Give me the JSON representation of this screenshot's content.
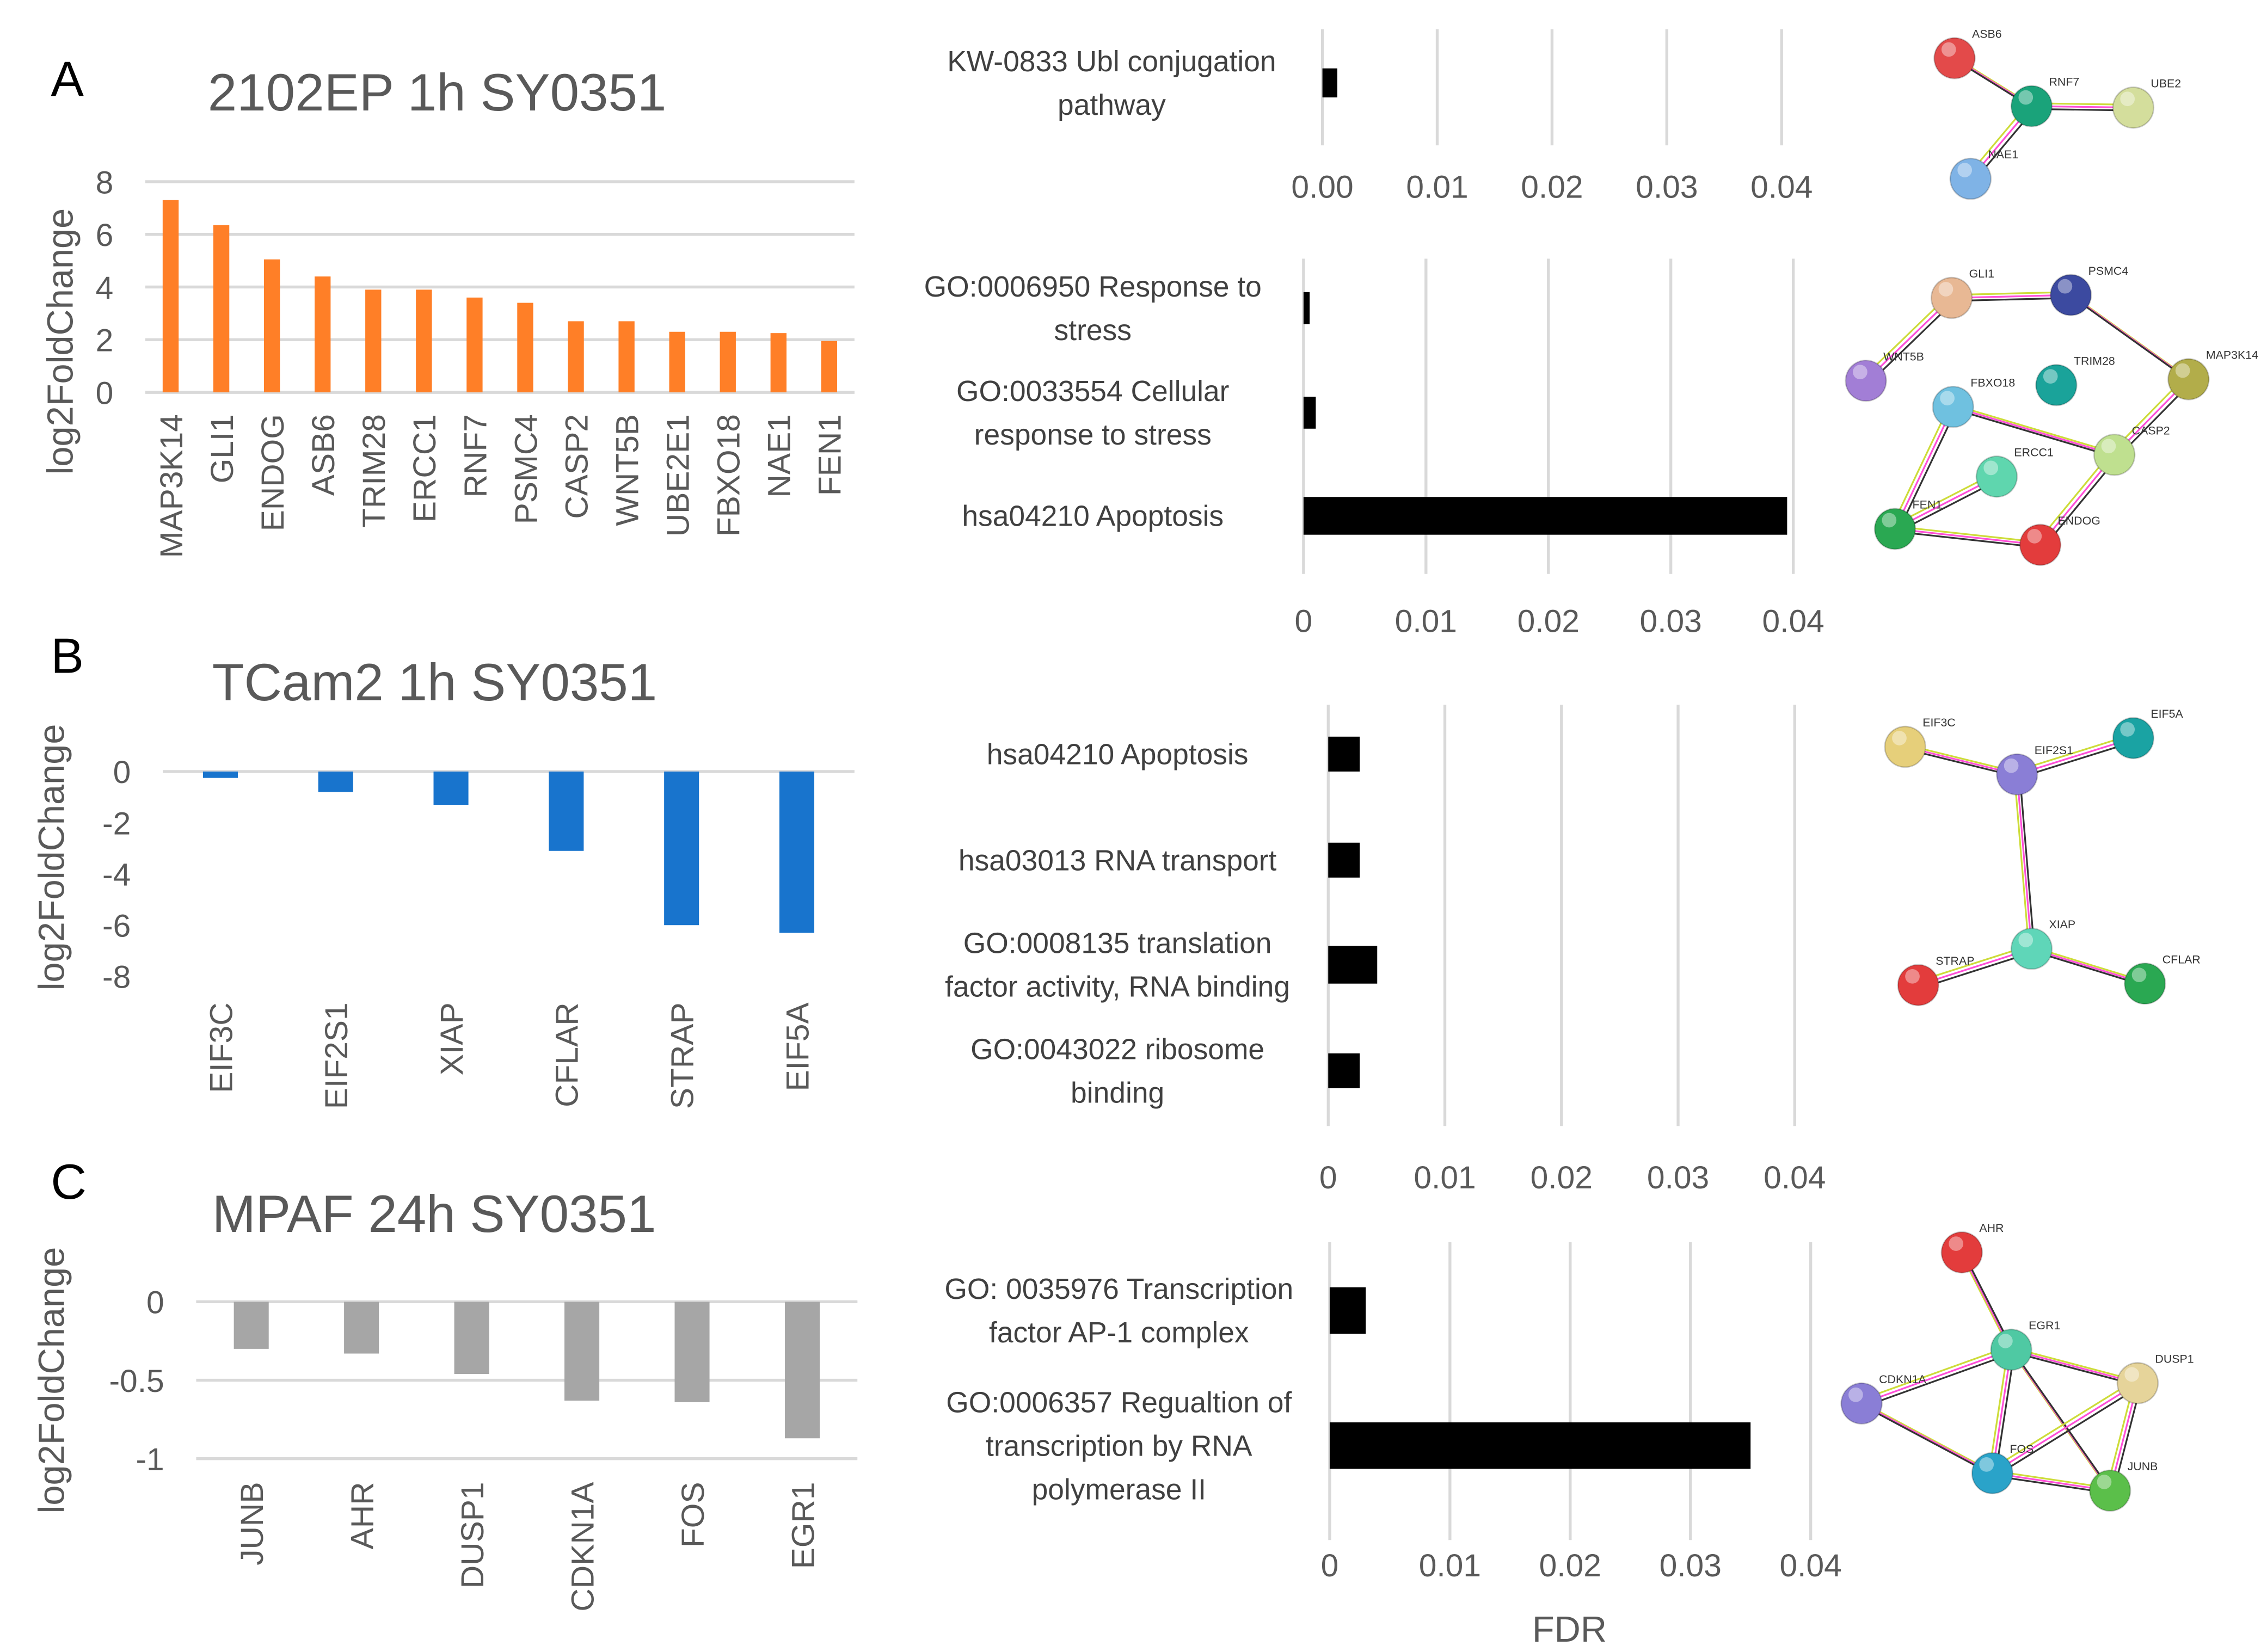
{
  "panels": [
    "A",
    "B",
    "C"
  ],
  "fdr_axis_label": "FDR",
  "chart_data": [
    {
      "id": "A",
      "type": "bar",
      "title": "2102EP 1h SY0351",
      "ylabel": "log2FoldChange",
      "color": "#ff7f27",
      "categories": [
        "MAP3K14",
        "GLI1",
        "ENDOG",
        "ASB6",
        "TRIM28",
        "ERCC1",
        "RNF7",
        "PSMC4",
        "CASP2",
        "WNT5B",
        "UBE2E1",
        "FBXO18",
        "NAE1",
        "FEN1"
      ],
      "values": [
        7.3,
        6.35,
        5.05,
        4.4,
        3.9,
        3.9,
        3.6,
        3.4,
        2.7,
        2.7,
        2.3,
        2.3,
        2.25,
        1.95
      ],
      "ylim": [
        0,
        8
      ],
      "yticks": [
        "0",
        "2",
        "4",
        "6",
        "8"
      ],
      "grid": true
    },
    {
      "id": "B",
      "type": "bar",
      "title": "TCam2 1h SY0351",
      "ylabel": "log2FoldChange",
      "color": "#1874cd",
      "categories": [
        "EIF3C",
        "EIF2S1",
        "XIAP",
        "CFLAR",
        "STRAP",
        "EIF5A"
      ],
      "values": [
        -0.25,
        -0.8,
        -1.3,
        -3.1,
        -6.0,
        -6.3
      ],
      "ylim": [
        -8,
        0
      ],
      "yticks": [
        "0",
        "-2",
        "-4",
        "-6",
        "-8"
      ],
      "grid": false
    },
    {
      "id": "C",
      "type": "bar",
      "title": "MPAF 24h SY0351",
      "ylabel": "log2FoldChange",
      "color": "#a6a6a6",
      "categories": [
        "JUNB",
        "AHR",
        "DUSP1",
        "CDKN1A",
        "FOS",
        "EGR1"
      ],
      "values": [
        -0.3,
        -0.33,
        -0.46,
        -0.63,
        -0.64,
        -0.87
      ],
      "ylim": [
        -1,
        0
      ],
      "yticks": [
        "0",
        "-0.5",
        "-1"
      ],
      "grid": true
    },
    {
      "id": "A1",
      "type": "bar",
      "orientation": "horizontal",
      "xlabel": "FDR",
      "color": "#000000",
      "categories": [
        "KW-0833 Ubl conjugation pathway"
      ],
      "values": [
        0.0013
      ],
      "xlim": [
        0,
        0.04
      ],
      "xticks": [
        "0.00",
        "0.01",
        "0.02",
        "0.03",
        "0.04"
      ]
    },
    {
      "id": "A2",
      "type": "bar",
      "orientation": "horizontal",
      "xlabel": "FDR",
      "color": "#000000",
      "categories": [
        "GO:0006950 Response to stress",
        "GO:0033554 Cellular response to stress",
        "hsa04210 Apoptosis"
      ],
      "values": [
        0.0005,
        0.001,
        0.0395
      ],
      "xlim": [
        0,
        0.04
      ],
      "xticks": [
        "0",
        "0.01",
        "0.02",
        "0.03",
        "0.04"
      ]
    },
    {
      "id": "B1",
      "type": "bar",
      "orientation": "horizontal",
      "xlabel": "FDR",
      "color": "#000000",
      "categories": [
        "hsa04210 Apoptosis",
        "hsa03013 RNA transport",
        "GO:0008135 translation factor activity, RNA binding",
        "GO:0043022 ribosome binding"
      ],
      "values": [
        0.0027,
        0.0027,
        0.0042,
        0.0027
      ],
      "xlim": [
        0,
        0.04
      ],
      "xticks": [
        "0",
        "0.01",
        "0.02",
        "0.03",
        "0.04"
      ]
    },
    {
      "id": "C1",
      "type": "bar",
      "orientation": "horizontal",
      "xlabel": "FDR",
      "color": "#000000",
      "categories": [
        "GO: 0035976 Transcription factor AP-1 complex",
        "GO:0006357 Regualtion of transcription by RNA polymerase II"
      ],
      "values": [
        0.003,
        0.035
      ],
      "xlim": [
        0,
        0.04
      ],
      "xticks": [
        "0",
        "0.01",
        "0.02",
        "0.03",
        "0.04"
      ]
    }
  ],
  "networks": [
    {
      "id": "A1",
      "nodes": [
        {
          "n": "ASB6",
          "c": "#e34a4a"
        },
        {
          "n": "RNF7",
          "c": "#1aa37a"
        },
        {
          "n": "UBE2",
          "c": "#d4de9c"
        },
        {
          "n": "NAE1",
          "c": "#7fb3e6"
        }
      ],
      "edges": [
        [
          0,
          1
        ],
        [
          1,
          2
        ],
        [
          1,
          3
        ]
      ]
    },
    {
      "id": "A2",
      "nodes": [
        {
          "n": "GLI1",
          "c": "#e8b894"
        },
        {
          "n": "PSMC4",
          "c": "#3c4aa0"
        },
        {
          "n": "WNT5B",
          "c": "#a27ed6"
        },
        {
          "n": "TRIM28",
          "c": "#1aa39a"
        },
        {
          "n": "MAP3K14",
          "c": "#b2ad4a"
        },
        {
          "n": "FBXO18",
          "c": "#6fc1e0"
        },
        {
          "n": "CASP2",
          "c": "#bfe08f"
        },
        {
          "n": "ERCC1",
          "c": "#5fd6ae"
        },
        {
          "n": "FEN1",
          "c": "#2aa852"
        },
        {
          "n": "ENDOG",
          "c": "#e33c3c"
        }
      ],
      "edges": [
        [
          0,
          1
        ],
        [
          0,
          2
        ],
        [
          1,
          4
        ],
        [
          4,
          6
        ],
        [
          5,
          6
        ],
        [
          5,
          8
        ],
        [
          7,
          8
        ],
        [
          8,
          9
        ],
        [
          6,
          9
        ]
      ]
    },
    {
      "id": "B",
      "nodes": [
        {
          "n": "EIF3C",
          "c": "#e6cf7a"
        },
        {
          "n": "EIF2S1",
          "c": "#8a7ed6"
        },
        {
          "n": "EIF5A",
          "c": "#1aa3a3"
        },
        {
          "n": "XIAP",
          "c": "#5fd6b8"
        },
        {
          "n": "STRAP",
          "c": "#e33c3c"
        },
        {
          "n": "CFLAR",
          "c": "#2aa852"
        }
      ],
      "edges": [
        [
          0,
          1
        ],
        [
          1,
          2
        ],
        [
          1,
          3
        ],
        [
          3,
          4
        ],
        [
          3,
          5
        ]
      ]
    },
    {
      "id": "C",
      "nodes": [
        {
          "n": "AHR",
          "c": "#e33c3c"
        },
        {
          "n": "EGR1",
          "c": "#4fc9a3"
        },
        {
          "n": "DUSP1",
          "c": "#e6d49a"
        },
        {
          "n": "CDKN1A",
          "c": "#8a7ed6"
        },
        {
          "n": "FOS",
          "c": "#2aa3c9"
        },
        {
          "n": "JUNB",
          "c": "#5bbf4a"
        }
      ],
      "edges": [
        [
          0,
          1
        ],
        [
          1,
          2
        ],
        [
          1,
          3
        ],
        [
          1,
          4
        ],
        [
          1,
          5
        ],
        [
          2,
          4
        ],
        [
          2,
          5
        ],
        [
          4,
          5
        ],
        [
          3,
          4
        ]
      ]
    }
  ]
}
